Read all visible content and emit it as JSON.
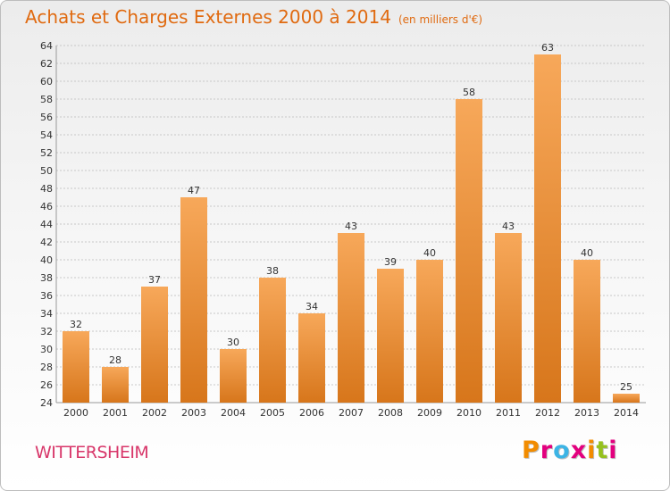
{
  "title": "Achats et Charges Externes 2000 à 2014",
  "subtitle": "(en milliers d'€)",
  "location": "WITTERSHEIM",
  "brand": {
    "text": "Proxiti",
    "letter_colors": [
      "#f28c00",
      "#e3007e",
      "#3cb4e5",
      "#e3007e",
      "#f28c00",
      "#95c11f",
      "#e3007e"
    ]
  },
  "colors": {
    "title": "#e06a10",
    "location": "#d8376a",
    "bar_light": "#f7a85a",
    "bar_dark": "#d7761b"
  },
  "chart_data": {
    "type": "bar",
    "categories": [
      "2000",
      "2001",
      "2002",
      "2003",
      "2004",
      "2005",
      "2006",
      "2007",
      "2008",
      "2009",
      "2010",
      "2011",
      "2012",
      "2013",
      "2014"
    ],
    "values": [
      32,
      28,
      37,
      47,
      30,
      38,
      34,
      43,
      39,
      40,
      58,
      43,
      63,
      40,
      25
    ],
    "ylim": [
      24,
      64
    ],
    "yticks": [
      24,
      26,
      28,
      30,
      32,
      34,
      36,
      38,
      40,
      42,
      44,
      46,
      48,
      50,
      52,
      54,
      56,
      58,
      60,
      62,
      64
    ],
    "grid": "horizontal dashed",
    "data_labels": true
  }
}
